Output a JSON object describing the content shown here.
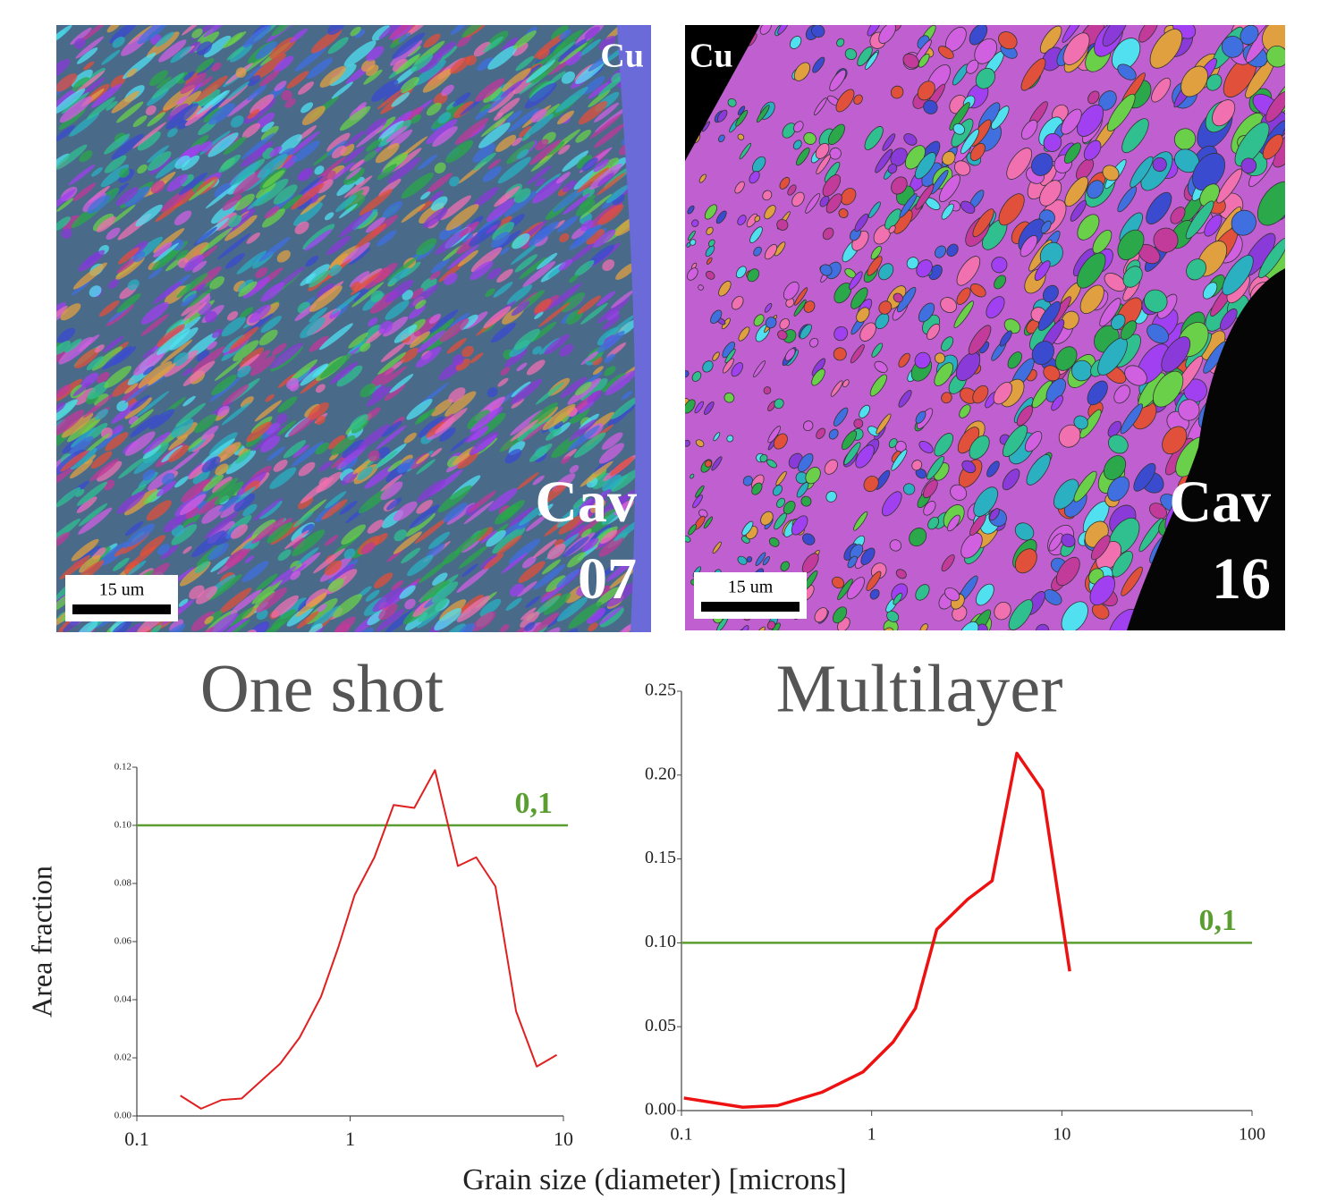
{
  "images": [
    {
      "material": "Cu",
      "label_lines": [
        "Cav",
        "07"
      ],
      "scale": "15 um"
    },
    {
      "material": "Cu",
      "label_lines": [
        "Cav",
        "16"
      ],
      "scale": "15 um"
    }
  ],
  "chart_data": [
    {
      "type": "line",
      "title": "One shot",
      "ylabel": "Area fraction",
      "xlabel": "Grain size (diameter) [microns]",
      "xscale": "log",
      "xlim": [
        0.1,
        10
      ],
      "xticks": [
        0.1,
        1,
        10
      ],
      "ylim": [
        0,
        0.12
      ],
      "yticks": [
        {
          "value": 0,
          "label": "0.00"
        },
        0.02,
        0.04,
        0.06,
        0.08,
        {
          "value": 0.1,
          "label": "0.10"
        },
        0.12
      ],
      "color": "#e02020",
      "x": [
        0.16,
        0.2,
        0.25,
        0.31,
        0.47,
        0.58,
        0.73,
        0.88,
        1.05,
        1.3,
        1.6,
        2.0,
        2.5,
        3.2,
        3.9,
        4.8,
        6.0,
        7.5,
        9.3
      ],
      "values": [
        0.007,
        0.0025,
        0.0055,
        0.006,
        0.018,
        0.027,
        0.041,
        0.058,
        0.076,
        0.089,
        0.107,
        0.106,
        0.119,
        0.086,
        0.089,
        0.079,
        0.036,
        0.017,
        0.021
      ],
      "hline": {
        "value": 0.1,
        "label": "0,1",
        "color": "#5a9e32"
      }
    },
    {
      "type": "line",
      "title": "Multilayer",
      "xscale": "log",
      "xlim": [
        0.1,
        100
      ],
      "xticks": [
        0.1,
        1,
        10,
        100
      ],
      "ylim": [
        0,
        0.25
      ],
      "yticks": [
        {
          "value": 0,
          "label": "0.00"
        },
        0.05,
        {
          "value": 0.1,
          "label": "0.10"
        },
        0.15,
        {
          "value": 0.2,
          "label": "0.20"
        },
        0.25
      ],
      "color": "#ee1111",
      "x": [
        0.103,
        0.21,
        0.32,
        0.55,
        0.9,
        1.3,
        1.7,
        2.2,
        3.2,
        4.3,
        5.8,
        7.9,
        11
      ],
      "values": [
        0.0075,
        0.002,
        0.003,
        0.011,
        0.023,
        0.041,
        0.061,
        0.108,
        0.126,
        0.137,
        0.213,
        0.191,
        0.083
      ],
      "hline": {
        "value": 0.1,
        "label": "0,1",
        "color": "#5a9e32"
      }
    }
  ]
}
